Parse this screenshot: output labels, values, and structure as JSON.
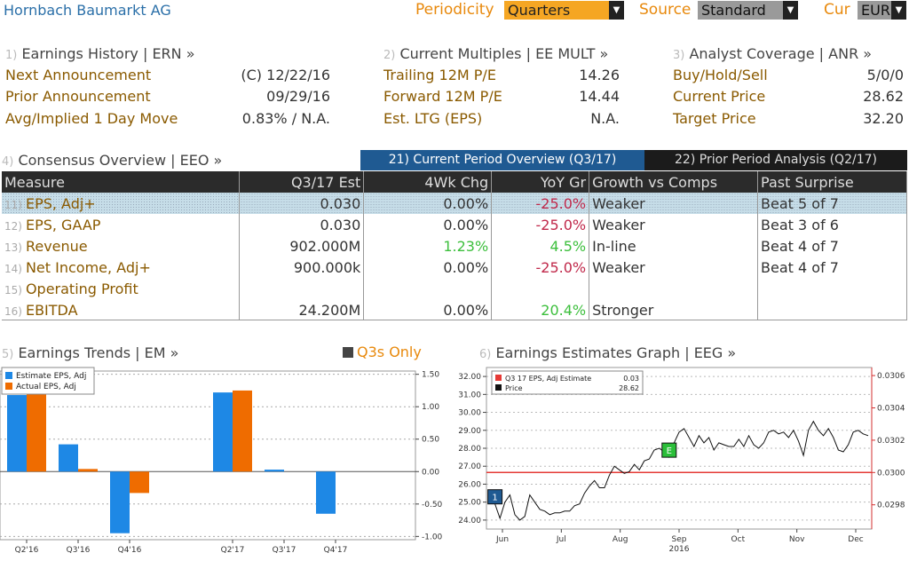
{
  "header": {
    "title": "Hornbach Baumarkt AG",
    "periodicity_label": "Periodicity",
    "periodicity_value": "Quarters",
    "source_label": "Source",
    "source_value": "Standard",
    "cur_label": "Cur",
    "cur_value": "EUR"
  },
  "earnings_history": {
    "num": "1)",
    "title": "Earnings History | ERN »",
    "rows": [
      {
        "label": "Next Announcement",
        "value": "(C)  12/22/16"
      },
      {
        "label": "Prior Announcement",
        "value": "09/29/16"
      },
      {
        "label": "Avg/Implied 1 Day Move",
        "value": "0.83% / N.A."
      }
    ]
  },
  "current_multiples": {
    "num": "2)",
    "title": "Current Multiples | EE MULT »",
    "rows": [
      {
        "label": "Trailing 12M P/E",
        "value": "14.26"
      },
      {
        "label": "Forward 12M P/E",
        "value": "14.44"
      },
      {
        "label": "Est. LTG (EPS)",
        "value": "N.A."
      }
    ]
  },
  "analyst_coverage": {
    "num": "3)",
    "title": "Analyst Coverage | ANR »",
    "rows": [
      {
        "label": "Buy/Hold/Sell",
        "value": "5/0/0"
      },
      {
        "label": "Current Price",
        "value": "28.62"
      },
      {
        "label": "Target Price",
        "value": "32.20"
      }
    ]
  },
  "consensus": {
    "num": "4)",
    "title": "Consensus Overview | EEO »",
    "tab_current": "21) Current Period Overview (Q3/17)",
    "tab_prior": "22) Prior Period Analysis (Q2/17)",
    "headers": [
      "Measure",
      "Q3/17 Est",
      "4Wk Chg",
      "YoY Gr",
      "Growth vs Comps",
      "Past Surprise"
    ],
    "rows": [
      {
        "num": "11)",
        "measure": "EPS, Adj+",
        "est": "0.030",
        "chg": "0.00%",
        "yoy": "-25.0%",
        "growth": "Weaker",
        "surprise": "Beat 5 of 7"
      },
      {
        "num": "12)",
        "measure": "EPS, GAAP",
        "est": "0.030",
        "chg": "0.00%",
        "yoy": "-25.0%",
        "growth": "Weaker",
        "surprise": "Beat 3 of 6"
      },
      {
        "num": "13)",
        "measure": "Revenue",
        "est": "902.000M",
        "chg": "1.23%",
        "yoy": "4.5%",
        "growth": "In-line",
        "surprise": "Beat 4 of 7"
      },
      {
        "num": "14)",
        "measure": "Net Income, Adj+",
        "est": "900.000k",
        "chg": "0.00%",
        "yoy": "-25.0%",
        "growth": "Weaker",
        "surprise": "Beat 4 of 7"
      },
      {
        "num": "15)",
        "measure": "Operating Profit",
        "est": "",
        "chg": "",
        "yoy": "",
        "growth": "",
        "surprise": ""
      },
      {
        "num": "16)",
        "measure": "EBITDA",
        "est": "24.200M",
        "chg": "0.00%",
        "yoy": "20.4%",
        "growth": "Stronger",
        "surprise": ""
      }
    ]
  },
  "trends": {
    "num": "5)",
    "title": "Earnings Trends | EM »",
    "toggle_label": "Q3s Only"
  },
  "eeg": {
    "num": "6)",
    "title": "Earnings Estimates Graph | EEG »"
  },
  "colors": {
    "accent": "#e8890c",
    "estimate": "#1e88e5",
    "actual": "#ef6c00",
    "tab_active": "#1f5a92",
    "negative": "#c0284a",
    "positive": "#3cbf3c"
  },
  "chart_data": [
    {
      "type": "bar",
      "categories": [
        "Q2'16",
        "Q3'16",
        "Q4'16",
        "Q2'17",
        "Q3'17",
        "Q4'17"
      ],
      "series": [
        {
          "name": "Estimate EPS, Adj",
          "values": [
            1.18,
            0.42,
            -0.95,
            1.22,
            0.03,
            -0.65
          ]
        },
        {
          "name": "Actual EPS, Adj",
          "values": [
            1.22,
            0.04,
            -0.33,
            1.25,
            null,
            null
          ]
        }
      ],
      "yticks": [
        "1.50",
        "1.00",
        "0.50",
        "0.00",
        "-0.50",
        "-1.00"
      ],
      "ylim": [
        -1.05,
        1.55
      ]
    },
    {
      "type": "line",
      "legend": [
        {
          "label": "Q3 17 EPS, Adj Estimate",
          "value": "0.03"
        },
        {
          "label": "Price",
          "value": "28.62"
        }
      ],
      "xticks": [
        "Jun",
        "Jul",
        "Aug",
        "Sep",
        "Oct",
        "Nov",
        "Dec"
      ],
      "year_label": "2016",
      "y_left_ticks": [
        "32.00",
        "31.00",
        "30.00",
        "29.00",
        "28.00",
        "27.00",
        "26.00",
        "25.00",
        "24.00"
      ],
      "y_right_ticks": [
        "0.0306",
        "0.0304",
        "0.0302",
        "0.0300",
        "0.0298"
      ],
      "left_range": [
        23.5,
        32.5
      ],
      "right_range": [
        0.02965,
        0.03065
      ],
      "price": [
        25.2,
        24.9,
        24.1,
        25.0,
        25.4,
        24.3,
        24.0,
        24.2,
        25.4,
        25.0,
        24.6,
        24.5,
        24.3,
        24.4,
        24.4,
        24.5,
        24.5,
        24.8,
        24.9,
        25.5,
        25.9,
        26.2,
        25.8,
        25.8,
        26.5,
        27.0,
        26.8,
        26.6,
        26.7,
        27.1,
        26.8,
        27.3,
        27.4,
        27.9,
        28.0,
        27.8,
        27.5,
        28.3,
        28.9,
        29.1,
        28.6,
        28.1,
        28.7,
        28.3,
        28.6,
        27.9,
        28.3,
        28.2,
        28.1,
        28.1,
        28.5,
        28.1,
        28.7,
        28.2,
        28.0,
        28.3,
        28.9,
        29.0,
        28.8,
        28.9,
        28.6,
        29.0,
        28.4,
        27.6,
        29.0,
        29.5,
        29.0,
        28.7,
        29.1,
        28.6,
        27.9,
        27.8,
        28.2,
        28.9,
        29.0,
        28.8,
        28.7
      ],
      "estimate": 0.03,
      "markers": [
        {
          "label": "1",
          "x_index": 1,
          "color": "#1f5a92"
        },
        {
          "label": "E",
          "x_index": 36,
          "color": "#2bbf3a"
        }
      ]
    }
  ]
}
